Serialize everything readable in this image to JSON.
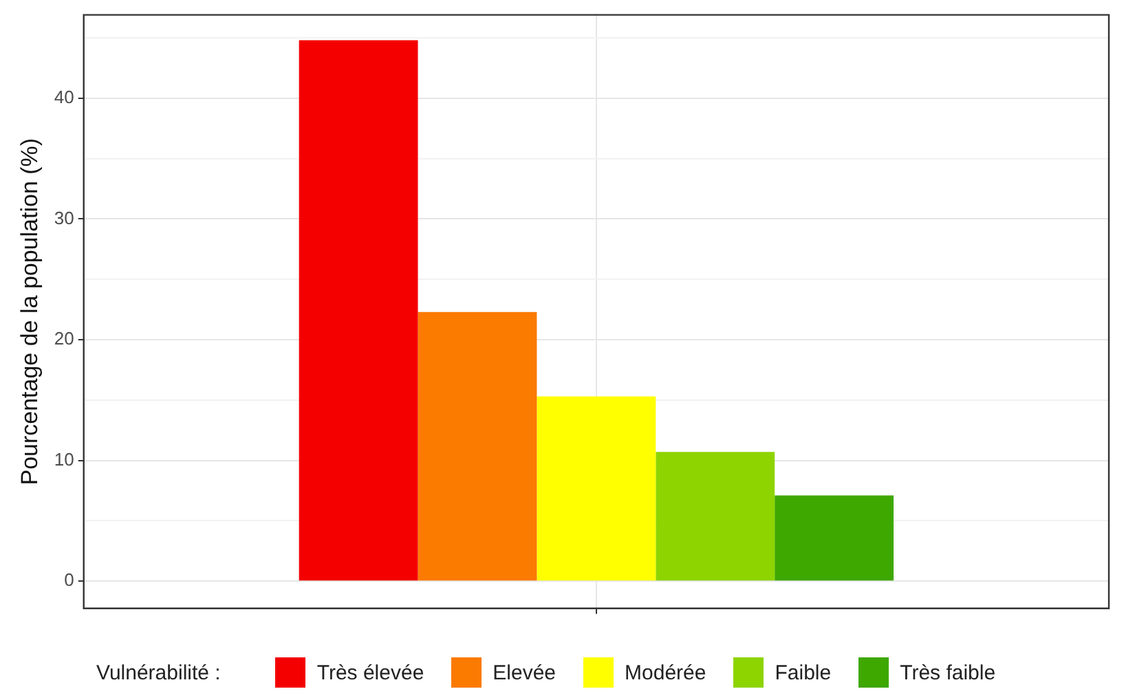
{
  "chart_data": {
    "type": "bar",
    "ylabel": "Pourcentage de la population (%)",
    "legend_title": "Vulnérabilité :",
    "legend": "bottom",
    "grid": true,
    "categories": [
      null
    ],
    "series": [
      {
        "name": "Très élevée",
        "color": "#f40000",
        "values": [
          44.8
        ]
      },
      {
        "name": "Elevée",
        "color": "#fb7a00",
        "values": [
          22.3
        ]
      },
      {
        "name": "Modérée",
        "color": "#ffff00",
        "values": [
          15.3
        ]
      },
      {
        "name": "Faible",
        "color": "#8dd400",
        "values": [
          10.7
        ]
      },
      {
        "name": "Très faible",
        "color": "#3ea700",
        "values": [
          7.1
        ]
      }
    ],
    "ylim": [
      -2.25,
      46.9
    ],
    "yticks": [
      0,
      {
        "value": 5,
        "label": null
      },
      10,
      {
        "value": 15,
        "label": null
      },
      20,
      {
        "value": 25,
        "label": null
      },
      30,
      {
        "value": 35,
        "label": null
      },
      40,
      {
        "value": 45,
        "label": null
      }
    ]
  }
}
